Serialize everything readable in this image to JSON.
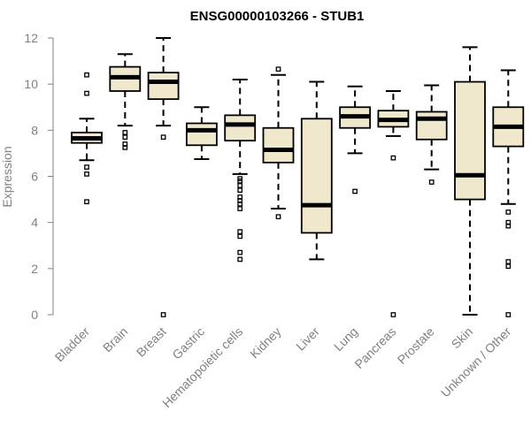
{
  "chart_data": {
    "type": "boxplot",
    "title": "ENSG00000103266 - STUB1",
    "xlabel": "",
    "ylabel": "Expression",
    "ylim": [
      0,
      12
    ],
    "yticks": [
      0,
      2,
      4,
      6,
      8,
      10,
      12
    ],
    "grid": false,
    "colors": {
      "box_fill": "#efe8cc",
      "stroke": "#000000",
      "axis": "#808080"
    },
    "categories": [
      "Bladder",
      "Brain",
      "Breast",
      "Gastric",
      "Hematopoietic cells",
      "Kidney",
      "Liver",
      "Lung",
      "Pancreas",
      "Prostate",
      "Skin",
      "Unknown / Other"
    ],
    "boxes": [
      {
        "whisker_low": 6.7,
        "q1": 7.45,
        "median": 7.65,
        "q3": 7.9,
        "whisker_high": 8.5,
        "outliers": [
          10.4,
          9.6,
          6.4,
          6.1,
          4.9
        ]
      },
      {
        "whisker_low": 8.2,
        "q1": 9.7,
        "median": 10.3,
        "q3": 10.75,
        "whisker_high": 11.3,
        "outliers": [
          7.9,
          7.7,
          7.4,
          7.25
        ]
      },
      {
        "whisker_low": 8.2,
        "q1": 9.35,
        "median": 10.1,
        "q3": 10.5,
        "whisker_high": 12.0,
        "outliers": [
          7.7,
          0
        ]
      },
      {
        "whisker_low": 6.75,
        "q1": 7.35,
        "median": 8.0,
        "q3": 8.3,
        "whisker_high": 9.0,
        "outliers": []
      },
      {
        "whisker_low": 6.1,
        "q1": 7.55,
        "median": 8.25,
        "q3": 8.65,
        "whisker_high": 10.2,
        "outliers": [
          5.9,
          5.8,
          5.6,
          5.4,
          5.1,
          4.95,
          4.8,
          4.6,
          3.6,
          3.4,
          2.7,
          2.4
        ]
      },
      {
        "whisker_low": 4.6,
        "q1": 6.6,
        "median": 7.15,
        "q3": 8.1,
        "whisker_high": 10.4,
        "outliers": [
          10.65,
          4.25
        ]
      },
      {
        "whisker_low": 2.4,
        "q1": 3.55,
        "median": 4.75,
        "q3": 8.5,
        "whisker_high": 10.1,
        "outliers": []
      },
      {
        "whisker_low": 7.0,
        "q1": 8.1,
        "median": 8.6,
        "q3": 9.0,
        "whisker_high": 9.9,
        "outliers": [
          5.35
        ]
      },
      {
        "whisker_low": 7.75,
        "q1": 8.15,
        "median": 8.45,
        "q3": 8.85,
        "whisker_high": 9.7,
        "outliers": [
          6.8,
          0
        ]
      },
      {
        "whisker_low": 6.3,
        "q1": 7.6,
        "median": 8.5,
        "q3": 8.8,
        "whisker_high": 9.95,
        "outliers": [
          5.75
        ]
      },
      {
        "whisker_low": 0.0,
        "q1": 5.0,
        "median": 6.05,
        "q3": 10.1,
        "whisker_high": 11.6,
        "outliers": []
      },
      {
        "whisker_low": 4.8,
        "q1": 7.3,
        "median": 8.15,
        "q3": 9.0,
        "whisker_high": 10.6,
        "outliers": [
          4.45,
          4.0,
          3.85,
          2.3,
          2.1,
          0
        ]
      }
    ]
  }
}
